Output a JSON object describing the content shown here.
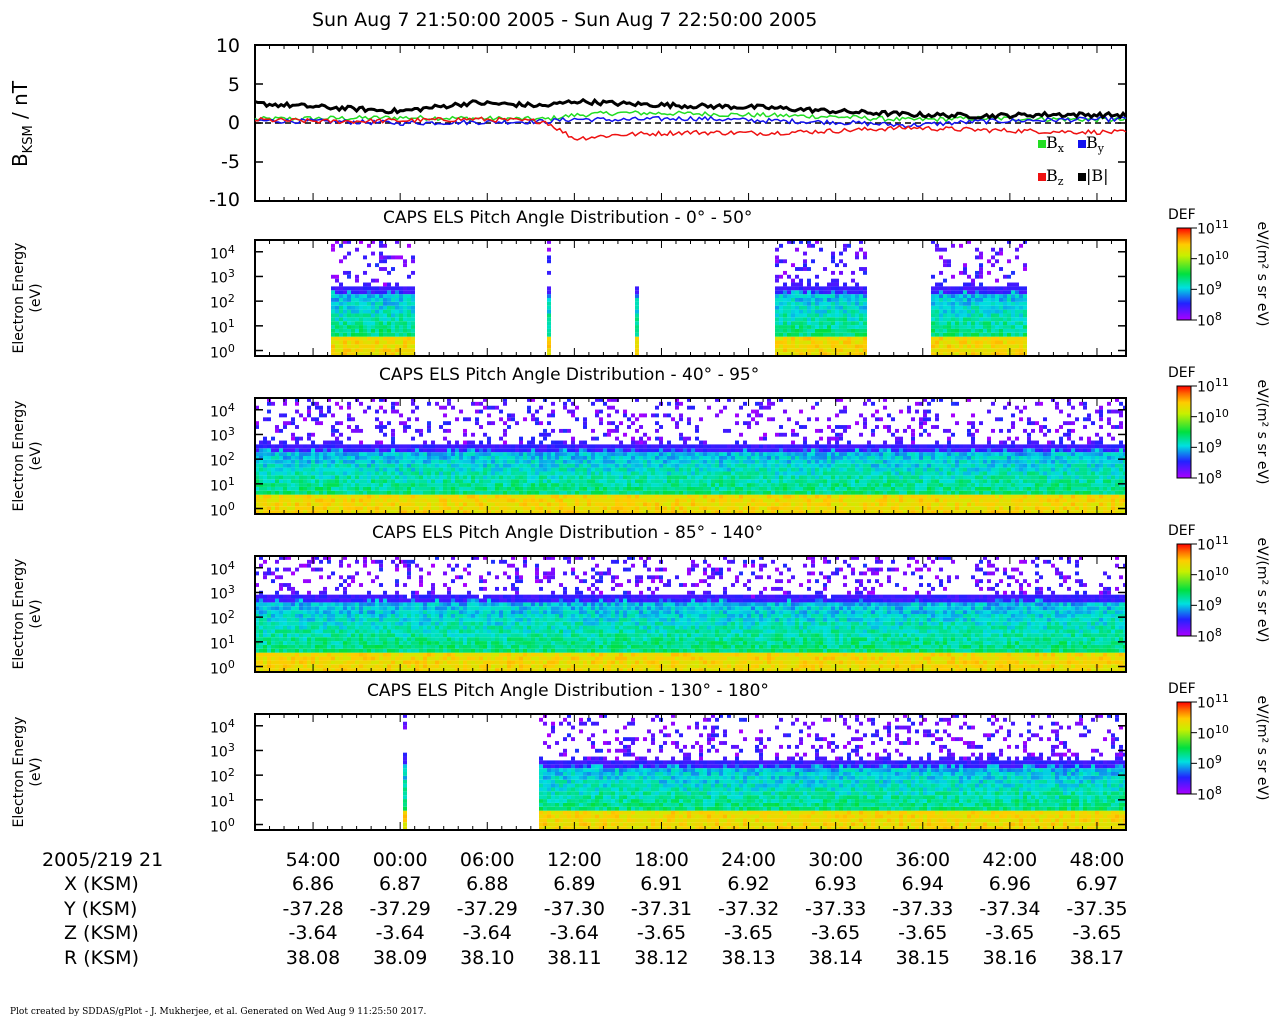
{
  "header": {
    "title": "Sun Aug  7 21:50:00 2005 - Sun Aug  7 22:50:00 2005"
  },
  "mag_panel": {
    "ylabel_main": "B",
    "ylabel_sub": "KSM",
    "ylabel_unit": " / nT",
    "yticks": [
      "10",
      "5",
      "0",
      "-5",
      "-10"
    ],
    "legend": [
      {
        "symbol": "B",
        "sub": "x",
        "color": "#22dd22"
      },
      {
        "symbol": "B",
        "sub": "y",
        "color": "#1111ee"
      },
      {
        "symbol": "B",
        "sub": "z",
        "color": "#ee1111"
      },
      {
        "symbol": "|B|",
        "sub": "",
        "color": "#000000"
      }
    ]
  },
  "spectro_panels": [
    {
      "title": "CAPS ELS Pitch Angle Distribution - 0° - 50°",
      "ylabel_1": "Electron Energy",
      "ylabel_2": "(eV)"
    },
    {
      "title": "CAPS ELS Pitch Angle Distribution - 40° - 95°",
      "ylabel_1": "Electron Energy",
      "ylabel_2": "(eV)"
    },
    {
      "title": "CAPS ELS Pitch Angle Distribution - 85° - 140°",
      "ylabel_1": "Electron Energy",
      "ylabel_2": "(eV)"
    },
    {
      "title": "CAPS ELS Pitch Angle Distribution - 130° - 180°",
      "ylabel_1": "Electron Energy",
      "ylabel_2": "(eV)"
    }
  ],
  "energy_ticks": [
    "10",
    "10",
    "10",
    "10",
    "10"
  ],
  "energy_exps": [
    "4",
    "3",
    "2",
    "1",
    "0"
  ],
  "colorbar": {
    "label": "DEF",
    "unit": "eV/(m² s sr eV)",
    "ticks_base": [
      "10",
      "10",
      "10",
      "10"
    ],
    "ticks_exp": [
      "11",
      "10",
      "9",
      "8"
    ]
  },
  "time_axis": {
    "date_label": "2005/219 21",
    "ticks": [
      "54:00",
      "00:00",
      "06:00",
      "12:00",
      "18:00",
      "24:00",
      "30:00",
      "36:00",
      "42:00",
      "48:00"
    ]
  },
  "ephemeris": [
    {
      "label": "X (KSM)",
      "values": [
        "6.86",
        "6.87",
        "6.88",
        "6.89",
        "6.91",
        "6.92",
        "6.93",
        "6.94",
        "6.96",
        "6.97"
      ]
    },
    {
      "label": "Y (KSM)",
      "values": [
        "-37.28",
        "-37.29",
        "-37.29",
        "-37.30",
        "-37.31",
        "-37.32",
        "-37.33",
        "-37.33",
        "-37.34",
        "-37.35"
      ]
    },
    {
      "label": "Z (KSM)",
      "values": [
        "-3.64",
        "-3.64",
        "-3.64",
        "-3.64",
        "-3.65",
        "-3.65",
        "-3.65",
        "-3.65",
        "-3.65",
        "-3.65"
      ]
    },
    {
      "label": "R (KSM)",
      "values": [
        "38.08",
        "38.09",
        "38.10",
        "38.11",
        "38.12",
        "38.13",
        "38.14",
        "38.15",
        "38.16",
        "38.17"
      ]
    }
  ],
  "footer": "Plot created by SDDAS/gPlot - J. Mukherjee, et al.  Generated on Wed Aug  9 11:25:50 2017.",
  "chart_data": [
    {
      "type": "line",
      "x_unit": "minutes after 21:50",
      "ylabel": "B_KSM / nT",
      "ylim": [
        -10,
        10
      ],
      "x": [
        0,
        5,
        10,
        15,
        20,
        22,
        25,
        30,
        35,
        40,
        45,
        50,
        55,
        60
      ],
      "series": [
        {
          "name": "B_x",
          "color": "#22dd22",
          "values": [
            0.5,
            0.6,
            0.7,
            0.6,
            0.5,
            1.0,
            1.3,
            1.2,
            1.0,
            0.8,
            0.4,
            0.6,
            0.5,
            0.4
          ]
        },
        {
          "name": "B_y",
          "color": "#1111ee",
          "values": [
            0.3,
            0.2,
            0.0,
            0.1,
            0.2,
            0.5,
            0.4,
            0.6,
            0.3,
            0.1,
            -0.3,
            0.2,
            0.4,
            0.5
          ]
        },
        {
          "name": "B_z",
          "color": "#ee1111",
          "values": [
            0.4,
            0.2,
            0.3,
            0.5,
            0.2,
            -2.0,
            -1.5,
            -1.2,
            -1.3,
            -1.0,
            -0.6,
            -0.9,
            -1.1,
            -1.2
          ]
        },
        {
          "name": "|B|",
          "color": "#000000",
          "values": [
            2.5,
            2.0,
            1.5,
            2.6,
            2.2,
            2.8,
            2.5,
            2.2,
            2.0,
            1.5,
            1.1,
            0.9,
            1.1,
            1.0
          ]
        }
      ]
    },
    {
      "type": "heatmap",
      "title": "CAPS ELS Pitch Angle Distribution - 0° - 50°",
      "ylabel": "Electron Energy (eV)",
      "yscale": "log",
      "ylim": [
        0.6,
        30000
      ],
      "color_range": [
        100000000.0,
        100000000000.0
      ],
      "data_intervals_minutes": [
        [
          5.0,
          11.0
        ],
        [
          20.0,
          20.3
        ],
        [
          26.0,
          26.4
        ],
        [
          35.8,
          42.0
        ],
        [
          46.5,
          53.0
        ]
      ]
    },
    {
      "type": "heatmap",
      "title": "CAPS ELS Pitch Angle Distribution - 40° - 95°",
      "ylabel": "Electron Energy (eV)",
      "yscale": "log",
      "ylim": [
        0.6,
        30000
      ],
      "color_range": [
        100000000.0,
        100000000000.0
      ],
      "data_intervals_minutes": [
        [
          0,
          60
        ]
      ]
    },
    {
      "type": "heatmap",
      "title": "CAPS ELS Pitch Angle Distribution - 85° - 140°",
      "ylabel": "Electron Energy (eV)",
      "yscale": "log",
      "ylim": [
        0.6,
        30000
      ],
      "color_range": [
        100000000.0,
        100000000000.0
      ],
      "data_intervals_minutes": [
        [
          0,
          60
        ]
      ]
    },
    {
      "type": "heatmap",
      "title": "CAPS ELS Pitch Angle Distribution - 130° - 180°",
      "ylabel": "Electron Energy (eV)",
      "yscale": "log",
      "ylim": [
        0.6,
        30000
      ],
      "color_range": [
        100000000.0,
        100000000000.0
      ],
      "data_intervals_minutes": [
        [
          10.0,
          10.3
        ],
        [
          19.5,
          60
        ]
      ]
    }
  ]
}
